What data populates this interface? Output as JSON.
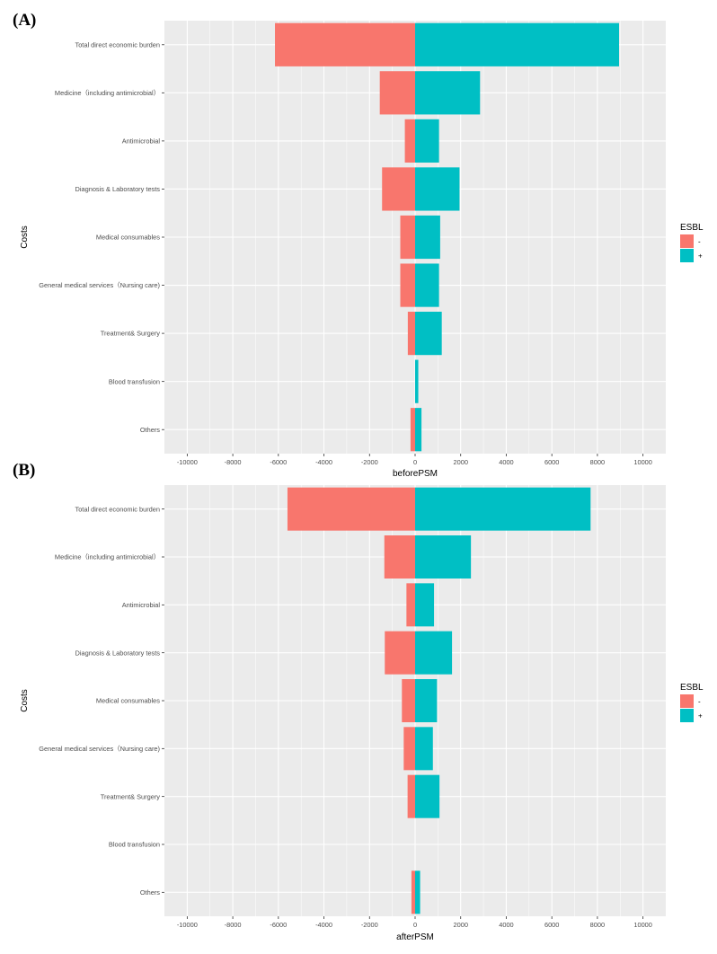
{
  "colors": {
    "neg": "#F8766D",
    "pos": "#00BFC4",
    "panel_bg": "#EBEBEB",
    "grid": "#FFFFFF"
  },
  "chart_data": [
    {
      "type": "bar",
      "orientation": "horizontal",
      "panel_label": "(A)",
      "xlabel": "beforePSM",
      "ylabel": "Costs",
      "xlim": [
        -11000,
        11000
      ],
      "xticks": [
        -10000,
        -8000,
        -6000,
        -4000,
        -2000,
        0,
        2000,
        4000,
        6000,
        8000,
        10000
      ],
      "categories": [
        "Total direct economic burden",
        "Medicine（including antimicrobial）",
        "Antimicrobial",
        "Diagnosis & Laboratory tests",
        "Medical consumables",
        "General medical services（Nursing care)",
        "Treatment& Surgery",
        "Blood transfusion",
        "Others"
      ],
      "series": [
        {
          "name": "-",
          "values": [
            -6150,
            -1550,
            -450,
            -1450,
            -650,
            -650,
            -320,
            0,
            -200
          ]
        },
        {
          "name": "+",
          "values": [
            8950,
            2850,
            1050,
            1950,
            1100,
            1050,
            1170,
            140,
            280
          ]
        }
      ],
      "legend": {
        "title": "ESBL",
        "position": "right",
        "entries": [
          "-",
          "+"
        ]
      }
    },
    {
      "type": "bar",
      "orientation": "horizontal",
      "panel_label": "(B)",
      "xlabel": "afterPSM",
      "ylabel": "Costs",
      "xlim": [
        -11000,
        11000
      ],
      "xticks": [
        -10000,
        -8000,
        -6000,
        -4000,
        -2000,
        0,
        2000,
        4000,
        6000,
        8000,
        10000
      ],
      "categories": [
        "Total direct economic burden",
        "Medicine（including antimicrobial）",
        "Antimicrobial",
        "Diagnosis & Laboratory tests",
        "Medical consumables",
        "General medical services（Nursing care)",
        "Treatment& Surgery",
        "Blood transfusion",
        "Others"
      ],
      "series": [
        {
          "name": "-",
          "values": [
            -5600,
            -1350,
            -380,
            -1330,
            -580,
            -500,
            -330,
            0,
            -160
          ]
        },
        {
          "name": "+",
          "values": [
            7700,
            2450,
            830,
            1620,
            960,
            780,
            1070,
            0,
            220
          ]
        }
      ],
      "legend": {
        "title": "ESBL",
        "position": "right",
        "entries": [
          "-",
          "+"
        ]
      }
    }
  ]
}
